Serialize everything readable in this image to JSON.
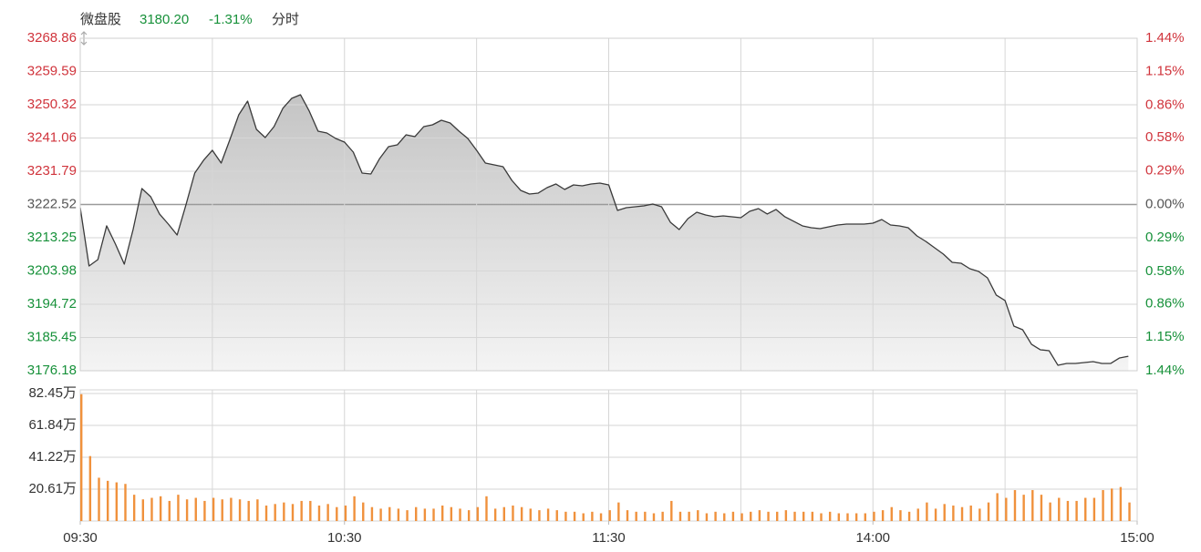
{
  "header": {
    "name": "微盘股",
    "price": "3180.20",
    "change": "-1.31%",
    "period": "分时"
  },
  "chart_data": [
    {
      "type": "area",
      "color": "#3a3a3a",
      "grid": true,
      "up_color": "#d0343c",
      "down_color": "#17913a",
      "flat_color": "#555555",
      "xlim": [
        0,
        240
      ],
      "xgrid": [
        0,
        30,
        60,
        90,
        120,
        150,
        180,
        210,
        240
      ],
      "ylim": [
        3176.18,
        3268.86
      ],
      "yticks": [
        3268.86,
        3259.59,
        3250.32,
        3241.06,
        3231.79,
        3222.52,
        3213.25,
        3203.98,
        3194.72,
        3185.45,
        3176.18
      ],
      "y2lim": [
        -1.44,
        1.44
      ],
      "y2ticks": [
        {
          "value": 1.44,
          "label": "1.44%"
        },
        {
          "value": 1.15,
          "label": "1.15%"
        },
        {
          "value": 0.86,
          "label": "0.86%"
        },
        {
          "value": 0.58,
          "label": "0.58%"
        },
        {
          "value": 0.29,
          "label": "0.29%"
        },
        {
          "value": 0,
          "label": "0.00%"
        },
        {
          "value": -0.29,
          "label": "0.29%"
        },
        {
          "value": -0.58,
          "label": "0.58%"
        },
        {
          "value": -0.86,
          "label": "0.86%"
        },
        {
          "value": -1.15,
          "label": "1.15%"
        },
        {
          "value": -1.44,
          "label": "1.44%"
        }
      ],
      "x": [
        0,
        2,
        4,
        6,
        8,
        10,
        12,
        14,
        16,
        18,
        20,
        22,
        24,
        26,
        28,
        30,
        32,
        34,
        36,
        38,
        40,
        42,
        44,
        46,
        48,
        50,
        52,
        54,
        56,
        58,
        60,
        62,
        64,
        66,
        68,
        70,
        72,
        74,
        76,
        78,
        80,
        82,
        84,
        86,
        88,
        90,
        92,
        94,
        96,
        98,
        100,
        102,
        104,
        106,
        108,
        110,
        112,
        114,
        116,
        118,
        120,
        122,
        124,
        126,
        128,
        130,
        132,
        134,
        136,
        138,
        140,
        142,
        144,
        146,
        148,
        150,
        152,
        154,
        156,
        158,
        160,
        162,
        164,
        166,
        168,
        170,
        172,
        174,
        176,
        178,
        180,
        182,
        184,
        186,
        188,
        190,
        192,
        194,
        196,
        198,
        200,
        202,
        204,
        206,
        208,
        210,
        212,
        214,
        216,
        218,
        220,
        222,
        224,
        226,
        228,
        230,
        232,
        234,
        236,
        238
      ],
      "values": [
        3221.63,
        3205.38,
        3207.16,
        3216.56,
        3211.48,
        3205.89,
        3215.54,
        3226.97,
        3224.68,
        3219.86,
        3217.06,
        3214.02,
        3222.4,
        3231.28,
        3234.84,
        3237.63,
        3234.08,
        3240.68,
        3247.53,
        3251.34,
        3243.47,
        3241.18,
        3244.23,
        3249.31,
        3252.1,
        3253.12,
        3248.55,
        3242.96,
        3242.45,
        3240.93,
        3239.92,
        3237.12,
        3231.28,
        3231.03,
        3235.35,
        3238.65,
        3239.15,
        3241.95,
        3241.44,
        3244.23,
        3244.74,
        3246.01,
        3245.25,
        3242.96,
        3240.93,
        3237.63,
        3234.08,
        3233.57,
        3233.06,
        3229.25,
        3226.46,
        3225.44,
        3225.7,
        3227.22,
        3228.24,
        3226.71,
        3227.98,
        3227.73,
        3228.24,
        3228.49,
        3227.98,
        3220.87,
        3221.63,
        3221.89,
        3222.14,
        3222.65,
        3221.89,
        3217.57,
        3215.54,
        3218.59,
        3220.37,
        3219.6,
        3219.1,
        3219.35,
        3219.1,
        3218.84,
        3220.62,
        3221.38,
        3219.86,
        3221.13,
        3219.1,
        3217.83,
        3216.56,
        3216.05,
        3215.79,
        3216.3,
        3216.81,
        3217.06,
        3217.06,
        3217.06,
        3217.32,
        3218.33,
        3216.81,
        3216.56,
        3216.05,
        3213.76,
        3212.24,
        3210.46,
        3208.69,
        3206.4,
        3206.15,
        3204.62,
        3203.86,
        3202.08,
        3197.26,
        3195.74,
        3188.63,
        3187.61,
        3183.55,
        3182.03,
        3181.77,
        3177.71,
        3178.22,
        3178.22,
        3178.47,
        3178.73,
        3178.22,
        3178.22,
        3179.74,
        3180.2
      ]
    },
    {
      "type": "bar",
      "color": "#f0913c",
      "grid": true,
      "xlim": [
        0,
        240
      ],
      "xgrid": [
        0,
        30,
        60,
        90,
        120,
        150,
        180,
        210,
        240
      ],
      "xticks": [
        {
          "value": 0,
          "label": "09:30"
        },
        {
          "value": 60,
          "label": "10:30"
        },
        {
          "value": 120,
          "label": "11:30"
        },
        {
          "value": 180,
          "label": "14:00"
        },
        {
          "value": 240,
          "label": "15:00"
        }
      ],
      "ylim": [
        0,
        82.45
      ],
      "yticks": [
        {
          "value": 82.45,
          "label": "82.45万"
        },
        {
          "value": 61.84,
          "label": "61.84万"
        },
        {
          "value": 41.22,
          "label": "41.22万"
        },
        {
          "value": 20.61,
          "label": "20.61万"
        }
      ],
      "x": [
        0,
        2,
        4,
        6,
        8,
        10,
        12,
        14,
        16,
        18,
        20,
        22,
        24,
        26,
        28,
        30,
        32,
        34,
        36,
        38,
        40,
        42,
        44,
        46,
        48,
        50,
        52,
        54,
        56,
        58,
        60,
        62,
        64,
        66,
        68,
        70,
        72,
        74,
        76,
        78,
        80,
        82,
        84,
        86,
        88,
        90,
        92,
        94,
        96,
        98,
        100,
        102,
        104,
        106,
        108,
        110,
        112,
        114,
        116,
        118,
        120,
        122,
        124,
        126,
        128,
        130,
        132,
        134,
        136,
        138,
        140,
        142,
        144,
        146,
        148,
        150,
        152,
        154,
        156,
        158,
        160,
        162,
        164,
        166,
        168,
        170,
        172,
        174,
        176,
        178,
        180,
        182,
        184,
        186,
        188,
        190,
        192,
        194,
        196,
        198,
        200,
        202,
        204,
        206,
        208,
        210,
        212,
        214,
        216,
        218,
        220,
        222,
        224,
        226,
        228,
        230,
        232,
        234,
        236,
        238
      ],
      "values": [
        82,
        42,
        28,
        26,
        25,
        24,
        17,
        14,
        15,
        16,
        13,
        17,
        14,
        15,
        13,
        15,
        14,
        15,
        14,
        13,
        14,
        10,
        11,
        12,
        11,
        13,
        13,
        10,
        11,
        9,
        10,
        16,
        12,
        9,
        8,
        9,
        8,
        7,
        9,
        8,
        8,
        10,
        9,
        8,
        7,
        9,
        16,
        8,
        9,
        10,
        9,
        8,
        7,
        8,
        7,
        6,
        6,
        5,
        6,
        5,
        7,
        12,
        7,
        6,
        6,
        5,
        6,
        13,
        6,
        6,
        7,
        5,
        6,
        5,
        6,
        5,
        6,
        7,
        6,
        6,
        7,
        6,
        6,
        6,
        5,
        6,
        5,
        5,
        5,
        5,
        6,
        7,
        9,
        7,
        6,
        8,
        12,
        8,
        11,
        10,
        9,
        10,
        8,
        12,
        18,
        15,
        20,
        17,
        20,
        17,
        12,
        15,
        13,
        13,
        15,
        15,
        20,
        21,
        22,
        12
      ]
    }
  ]
}
